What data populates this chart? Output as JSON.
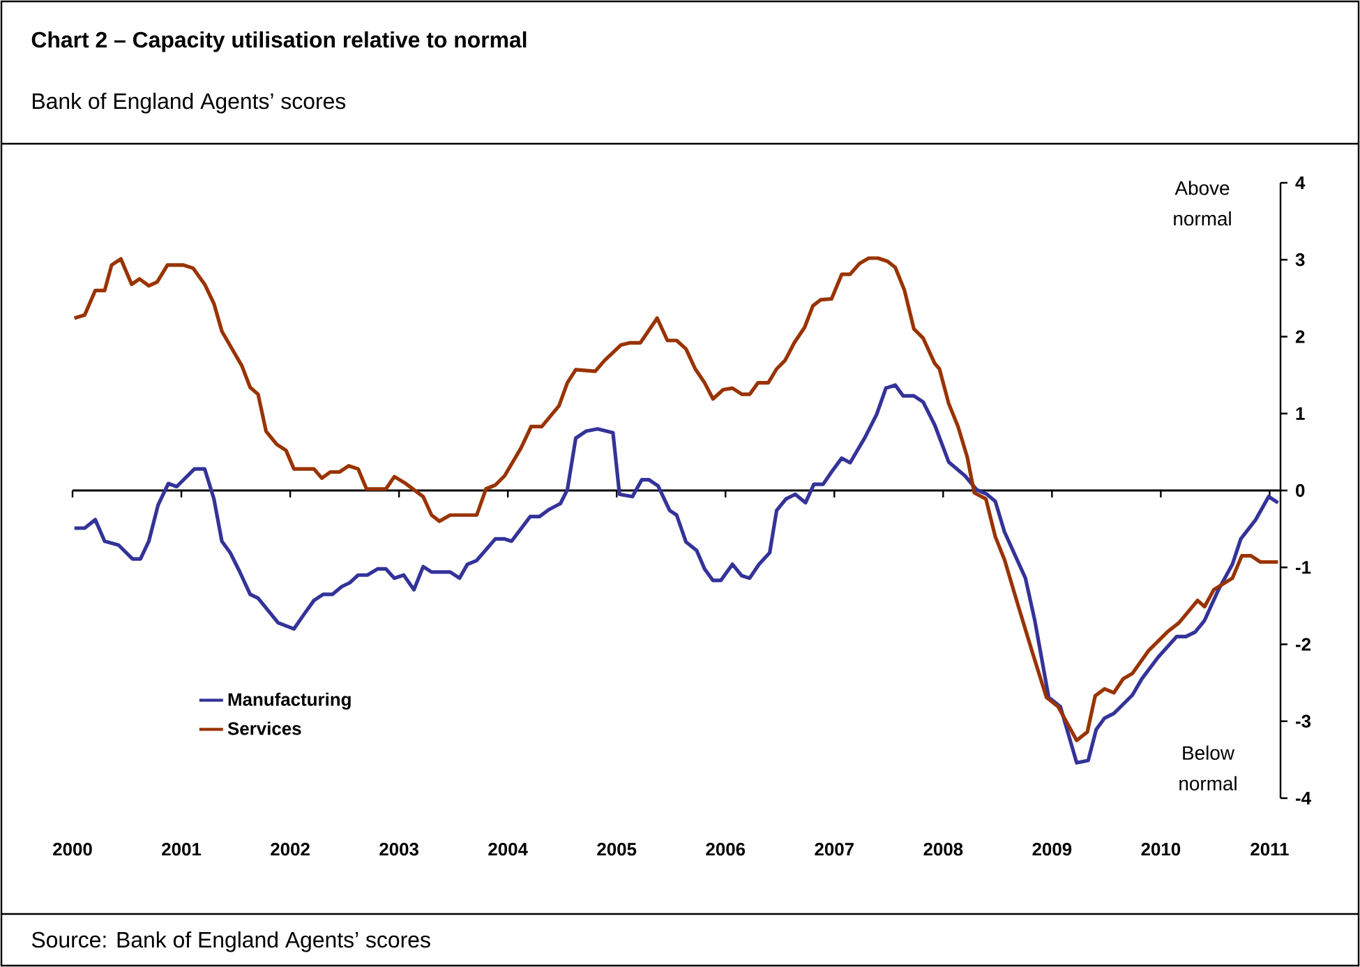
{
  "chart_data": {
    "type": "line",
    "title": "Chart 2 – Capacity utilisation relative to normal",
    "subtitle": "Bank of England Agents’ scores",
    "annotations": [
      "Above normal",
      "Below normal",
      "Source: Bank of England Agents’ scores"
    ],
    "xlim": [
      2000,
      2011.1
    ],
    "xticks": [
      2000,
      2001,
      2002,
      2003,
      2004,
      2005,
      2006,
      2007,
      2008,
      2009,
      2010,
      2011
    ],
    "ylim": [
      -4,
      4
    ],
    "yticks": [
      -4,
      -3,
      -2,
      -1,
      0,
      1,
      2,
      3,
      4
    ],
    "legend": "bottom left",
    "marker": "none",
    "line_style": "solid",
    "series": [
      {
        "name": "Manufacturing",
        "color": "#333399",
        "x": [
          2000.017,
          2000.111,
          2000.209,
          2000.295,
          2000.423,
          2000.551,
          2000.624,
          2000.701,
          2000.786,
          2000.88,
          2000.957,
          2001.12,
          2001.214,
          2001.299,
          2001.372,
          2001.449,
          2001.534,
          2001.632,
          2001.705,
          2001.889,
          2002.034,
          2002.132,
          2002.218,
          2002.303,
          2002.389,
          2002.474,
          2002.547,
          2002.624,
          2002.709,
          2002.803,
          2002.88,
          2002.957,
          2003.043,
          2003.137,
          2003.222,
          2003.299,
          2003.47,
          2003.556,
          2003.628,
          2003.714,
          2003.885,
          2003.97,
          2004.034,
          2004.205,
          2004.291,
          2004.376,
          2004.483,
          2004.547,
          2004.624,
          2004.718,
          2004.825,
          2004.966,
          2005.026,
          2005.145,
          2005.231,
          2005.295,
          2005.38,
          2005.487,
          2005.551,
          2005.637,
          2005.735,
          2005.808,
          2005.885,
          2005.957,
          2006.064,
          2006.15,
          2006.222,
          2006.308,
          2006.406,
          2006.47,
          2006.556,
          2006.641,
          2006.735,
          2006.812,
          2006.897,
          2006.974,
          2007.068,
          2007.145,
          2007.282,
          2007.389,
          2007.474,
          2007.56,
          2007.632,
          2007.731,
          2007.816,
          2007.923,
          2008.051,
          2008.201,
          2008.308,
          2008.402,
          2008.479,
          2008.564,
          2008.756,
          2008.842,
          2008.97,
          2009.077,
          2009.227,
          2009.333,
          2009.406,
          2009.483,
          2009.568,
          2009.739,
          2009.825,
          2009.974,
          2010.145,
          2010.231,
          2010.316,
          2010.402,
          2010.53,
          2010.658,
          2010.735,
          2010.872,
          2010.991,
          2011.077
        ],
        "values": [
          -0.49,
          -0.49,
          -0.38,
          -0.66,
          -0.71,
          -0.89,
          -0.89,
          -0.66,
          -0.19,
          0.09,
          0.05,
          0.28,
          0.28,
          -0.11,
          -0.66,
          -0.81,
          -1.05,
          -1.35,
          -1.4,
          -1.72,
          -1.8,
          -1.6,
          -1.43,
          -1.35,
          -1.35,
          -1.25,
          -1.2,
          -1.1,
          -1.1,
          -1.02,
          -1.02,
          -1.14,
          -1.1,
          -1.29,
          -0.99,
          -1.06,
          -1.06,
          -1.14,
          -0.96,
          -0.91,
          -0.63,
          -0.63,
          -0.66,
          -0.34,
          -0.34,
          -0.25,
          -0.17,
          0.01,
          0.68,
          0.77,
          0.8,
          0.75,
          -0.05,
          -0.08,
          0.14,
          0.14,
          0.06,
          -0.26,
          -0.32,
          -0.67,
          -0.78,
          -1.02,
          -1.17,
          -1.17,
          -0.96,
          -1.11,
          -1.14,
          -0.96,
          -0.81,
          -0.26,
          -0.11,
          -0.05,
          -0.16,
          0.08,
          0.08,
          0.24,
          0.42,
          0.36,
          0.69,
          0.99,
          1.33,
          1.37,
          1.23,
          1.23,
          1.15,
          0.85,
          0.37,
          0.19,
          0.01,
          -0.05,
          -0.14,
          -0.54,
          -1.14,
          -1.69,
          -2.69,
          -2.81,
          -3.54,
          -3.51,
          -3.11,
          -2.96,
          -2.9,
          -2.66,
          -2.45,
          -2.17,
          -1.9,
          -1.9,
          -1.84,
          -1.69,
          -1.29,
          -0.96,
          -0.63,
          -0.38,
          -0.08,
          -0.16
        ]
      },
      {
        "name": "Services",
        "color": "#993300",
        "x": [
          2000.017,
          2000.111,
          2000.209,
          2000.295,
          2000.359,
          2000.444,
          2000.543,
          2000.615,
          2000.701,
          2000.778,
          2000.872,
          2001.021,
          2001.107,
          2001.214,
          2001.299,
          2001.372,
          2001.47,
          2001.556,
          2001.632,
          2001.705,
          2001.778,
          2001.876,
          2001.962,
          2002.034,
          2002.218,
          2002.291,
          2002.368,
          2002.453,
          2002.538,
          2002.624,
          2002.701,
          2002.88,
          2002.957,
          2003.051,
          2003.222,
          2003.299,
          2003.372,
          2003.47,
          2003.714,
          2003.799,
          2003.885,
          2003.97,
          2004.12,
          2004.214,
          2004.312,
          2004.47,
          2004.547,
          2004.624,
          2004.803,
          2004.889,
          2005.038,
          2005.124,
          2005.218,
          2005.372,
          2005.466,
          2005.551,
          2005.637,
          2005.722,
          2005.808,
          2005.885,
          2005.979,
          2006.064,
          2006.15,
          2006.222,
          2006.299,
          2006.393,
          2006.47,
          2006.547,
          2006.632,
          2006.727,
          2006.803,
          2006.876,
          2006.974,
          2007.068,
          2007.145,
          2007.231,
          2007.316,
          2007.402,
          2007.487,
          2007.56,
          2007.645,
          2007.731,
          2007.816,
          2007.923,
          2007.966,
          2008.051,
          2008.137,
          2008.222,
          2008.286,
          2008.393,
          2008.479,
          2008.564,
          2008.692,
          2008.821,
          2008.949,
          2009.056,
          2009.227,
          2009.325,
          2009.397,
          2009.483,
          2009.568,
          2009.654,
          2009.739,
          2009.889,
          2010.06,
          2010.167,
          2010.338,
          2010.402,
          2010.487,
          2010.658,
          2010.744,
          2010.829,
          2010.915,
          2011.077
        ],
        "values": [
          2.24,
          2.28,
          2.6,
          2.6,
          2.93,
          3.01,
          2.68,
          2.75,
          2.66,
          2.71,
          2.93,
          2.93,
          2.89,
          2.68,
          2.43,
          2.07,
          1.83,
          1.62,
          1.34,
          1.25,
          0.77,
          0.6,
          0.52,
          0.28,
          0.28,
          0.16,
          0.24,
          0.24,
          0.32,
          0.28,
          0.02,
          0.02,
          0.18,
          0.1,
          -0.08,
          -0.32,
          -0.4,
          -0.32,
          -0.32,
          0.02,
          0.07,
          0.19,
          0.55,
          0.83,
          0.83,
          1.1,
          1.4,
          1.57,
          1.55,
          1.69,
          1.89,
          1.92,
          1.92,
          2.24,
          1.95,
          1.95,
          1.84,
          1.58,
          1.4,
          1.19,
          1.31,
          1.33,
          1.25,
          1.25,
          1.4,
          1.4,
          1.58,
          1.69,
          1.92,
          2.12,
          2.4,
          2.48,
          2.49,
          2.81,
          2.81,
          2.95,
          3.02,
          3.02,
          2.98,
          2.9,
          2.6,
          2.1,
          1.98,
          1.65,
          1.58,
          1.13,
          0.83,
          0.43,
          -0.03,
          -0.11,
          -0.6,
          -0.9,
          -1.51,
          -2.11,
          -2.69,
          -2.81,
          -3.25,
          -3.14,
          -2.67,
          -2.58,
          -2.63,
          -2.45,
          -2.38,
          -2.08,
          -1.84,
          -1.72,
          -1.43,
          -1.51,
          -1.29,
          -1.14,
          -0.85,
          -0.85,
          -0.93,
          -0.93
        ]
      }
    ]
  }
}
